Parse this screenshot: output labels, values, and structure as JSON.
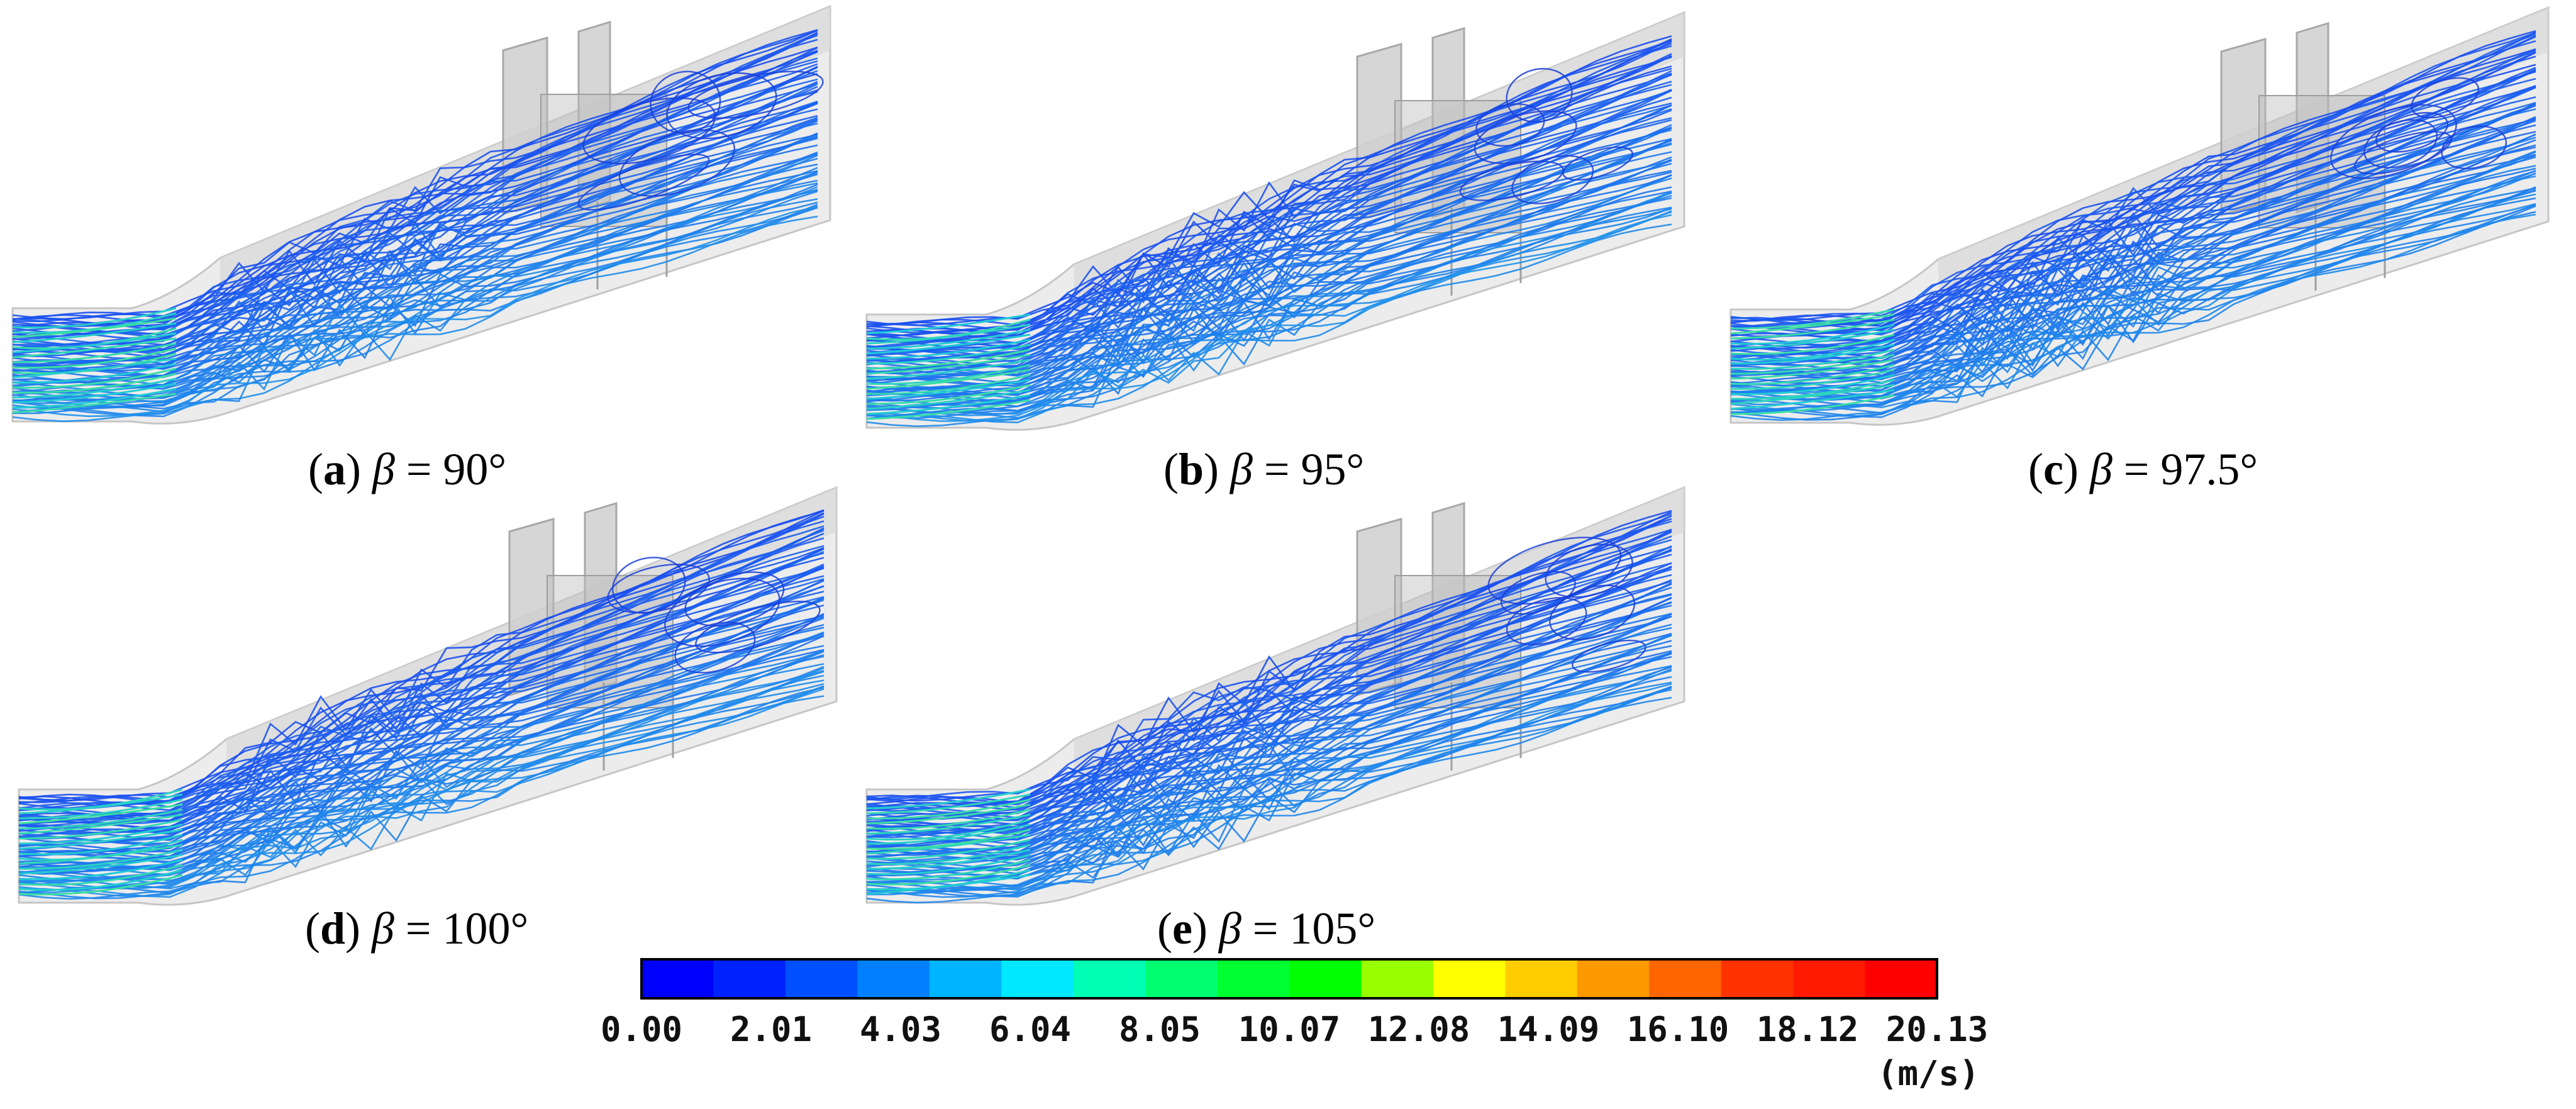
{
  "panels": [
    {
      "id": "a",
      "letter": "a",
      "symbol": "β",
      "value_text": " = 90°",
      "angle": 90
    },
    {
      "id": "b",
      "letter": "b",
      "symbol": "β",
      "value_text": " = 95°",
      "angle": 95
    },
    {
      "id": "c",
      "letter": "c",
      "symbol": "β",
      "value_text": " = 97.5°",
      "angle": 97.5
    },
    {
      "id": "d",
      "letter": "d",
      "symbol": "β",
      "value_text": " = 100°",
      "angle": 100
    },
    {
      "id": "e",
      "letter": "e",
      "symbol": "β",
      "value_text": " = 105°",
      "angle": 105
    }
  ],
  "colorbar": {
    "unit": "(m/s)",
    "min": 0.0,
    "max": 20.13,
    "tick_labels": [
      "0.00",
      "2.01",
      "4.03",
      "6.04",
      "8.05",
      "10.07",
      "12.08",
      "14.09",
      "16.10",
      "18.12",
      "20.13"
    ],
    "colors": [
      "#0000ff",
      "#0022ff",
      "#0050ff",
      "#0080ff",
      "#00b4ff",
      "#00e8ff",
      "#00ffb4",
      "#00ff70",
      "#00ff30",
      "#00ff00",
      "#99ff00",
      "#ffff00",
      "#ffcc00",
      "#ff9900",
      "#ff6600",
      "#ff3300",
      "#ff1a00",
      "#ff0000"
    ]
  }
}
